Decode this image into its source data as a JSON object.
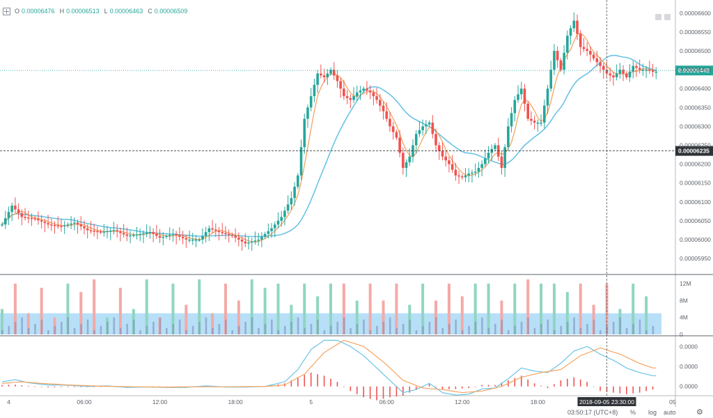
{
  "ohlc": {
    "o_label": "O",
    "o_value": "0.00006476",
    "h_label": "H",
    "h_value": "0.00006513",
    "l_label": "L",
    "l_value": "0.00006463",
    "c_label": "C",
    "c_value": "0.00006509"
  },
  "colors": {
    "up": "#26a69a",
    "down": "#ef5350",
    "up_vol": "#8fd6c0",
    "down_vol": "#f4a9a7",
    "ma_fast": "#f4a460",
    "ma_slow": "#6ac3e6",
    "vol_band": "#5fb7f0",
    "macd_hist": "#ef5350",
    "last_price_bg": "#26a69a",
    "crosshair_bg": "#2f3337"
  },
  "bottom_bar": {
    "time": "03:50:17 (UTC+8)",
    "percent": "%",
    "log": "log",
    "auto": "auto"
  },
  "chart_data": {
    "type": "candlestick",
    "x_tick_labels": [
      "4",
      "06:00",
      "12:00",
      "18:00",
      "5",
      "06:00",
      "12:00",
      "18:00",
      "05"
    ],
    "price_axis": {
      "ylim": [
        5.915e-05,
        6.62e-05
      ],
      "tick_labels": [
        "0.00006600",
        "0.00006550",
        "0.00006500",
        "0.00006450",
        "0.00006400",
        "0.00006350",
        "0.00006300",
        "0.00006250",
        "0.00006200",
        "0.00006150",
        "0.00006100",
        "0.00006050",
        "0.00006000",
        "0.00005950"
      ],
      "last_price_label": "0.00006448",
      "crosshair_price_label": "0.00006235"
    },
    "crosshair_time_label": "2018-09-05 23:30:00",
    "volume_axis": {
      "ylim": [
        0,
        13.5
      ],
      "unit": "M",
      "tick_labels": [
        "12M",
        "8M",
        "4M",
        "0"
      ]
    },
    "macd_axis": {
      "ylim": [
        -0.3,
        1.6
      ],
      "tick_labels": [
        "0.0000",
        "0.0000",
        "0.0000"
      ]
    },
    "price_anchors": [
      [
        0,
        6040
      ],
      [
        3,
        6090
      ],
      [
        6,
        6060
      ],
      [
        10,
        6055
      ],
      [
        14,
        6040
      ],
      [
        18,
        6035
      ],
      [
        22,
        6045
      ],
      [
        26,
        6025
      ],
      [
        30,
        6020
      ],
      [
        34,
        6025
      ],
      [
        38,
        6010
      ],
      [
        42,
        6015
      ],
      [
        45,
        6020
      ],
      [
        48,
        6005
      ],
      [
        52,
        6015
      ],
      [
        56,
        6000
      ],
      [
        60,
        6000
      ],
      [
        63,
        6030
      ],
      [
        66,
        6020
      ],
      [
        70,
        6010
      ],
      [
        74,
        5990
      ],
      [
        78,
        6000
      ],
      [
        82,
        6030
      ],
      [
        85,
        6060
      ],
      [
        88,
        6110
      ],
      [
        90,
        6170
      ],
      [
        92,
        6320
      ],
      [
        94,
        6380
      ],
      [
        96,
        6440
      ],
      [
        98,
        6430
      ],
      [
        100,
        6450
      ],
      [
        102,
        6420
      ],
      [
        104,
        6380
      ],
      [
        106,
        6370
      ],
      [
        108,
        6390
      ],
      [
        110,
        6400
      ],
      [
        112,
        6390
      ],
      [
        114,
        6370
      ],
      [
        116,
        6340
      ],
      [
        118,
        6300
      ],
      [
        120,
        6270
      ],
      [
        122,
        6190
      ],
      [
        124,
        6220
      ],
      [
        126,
        6280
      ],
      [
        128,
        6300
      ],
      [
        130,
        6310
      ],
      [
        132,
        6250
      ],
      [
        134,
        6220
      ],
      [
        136,
        6200
      ],
      [
        138,
        6170
      ],
      [
        140,
        6165
      ],
      [
        142,
        6175
      ],
      [
        144,
        6180
      ],
      [
        146,
        6200
      ],
      [
        148,
        6230
      ],
      [
        150,
        6250
      ],
      [
        152,
        6190
      ],
      [
        154,
        6300
      ],
      [
        156,
        6370
      ],
      [
        158,
        6400
      ],
      [
        160,
        6320
      ],
      [
        162,
        6310
      ],
      [
        164,
        6310
      ],
      [
        166,
        6400
      ],
      [
        168,
        6500
      ],
      [
        170,
        6450
      ],
      [
        172,
        6540
      ],
      [
        174,
        6580
      ],
      [
        176,
        6510
      ],
      [
        178,
        6500
      ],
      [
        180,
        6480
      ],
      [
        182,
        6460
      ],
      [
        184,
        6440
      ],
      [
        186,
        6430
      ],
      [
        188,
        6450
      ],
      [
        190,
        6430
      ],
      [
        192,
        6460
      ],
      [
        194,
        6450
      ],
      [
        196,
        6450
      ],
      [
        198,
        6445
      ]
    ],
    "volume": [
      [
        0,
        6
      ],
      [
        4,
        12
      ],
      [
        8,
        5
      ],
      [
        12,
        11
      ],
      [
        16,
        4
      ],
      [
        20,
        12
      ],
      [
        24,
        10
      ],
      [
        28,
        13
      ],
      [
        32,
        4
      ],
      [
        36,
        11
      ],
      [
        40,
        6
      ],
      [
        44,
        13
      ],
      [
        48,
        4
      ],
      [
        52,
        12
      ],
      [
        56,
        7
      ],
      [
        60,
        13
      ],
      [
        64,
        5
      ],
      [
        68,
        12
      ],
      [
        72,
        8
      ],
      [
        76,
        13
      ],
      [
        80,
        11
      ],
      [
        84,
        12
      ],
      [
        88,
        7
      ],
      [
        92,
        12
      ],
      [
        96,
        9
      ],
      [
        100,
        12
      ],
      [
        104,
        12
      ],
      [
        108,
        8
      ],
      [
        112,
        12
      ],
      [
        116,
        8
      ],
      [
        120,
        12
      ],
      [
        124,
        7
      ],
      [
        128,
        12
      ],
      [
        132,
        8
      ],
      [
        136,
        12
      ],
      [
        140,
        9
      ],
      [
        144,
        12
      ],
      [
        148,
        12
      ],
      [
        152,
        8
      ],
      [
        156,
        12
      ],
      [
        160,
        13
      ],
      [
        164,
        12
      ],
      [
        168,
        12
      ],
      [
        172,
        10
      ],
      [
        176,
        12
      ],
      [
        180,
        7
      ],
      [
        184,
        12
      ],
      [
        188,
        6
      ],
      [
        192,
        12
      ],
      [
        196,
        9
      ]
    ],
    "volume_avg": 5,
    "macd_dif": [
      [
        0,
        0.15
      ],
      [
        4,
        0.22
      ],
      [
        8,
        0.12
      ],
      [
        14,
        0.05
      ],
      [
        20,
        0.04
      ],
      [
        26,
        0.0
      ],
      [
        32,
        0.02
      ],
      [
        38,
        -0.03
      ],
      [
        44,
        -0.02
      ],
      [
        50,
        -0.03
      ],
      [
        56,
        -0.03
      ],
      [
        62,
        0.02
      ],
      [
        68,
        -0.02
      ],
      [
        74,
        -0.02
      ],
      [
        80,
        0.0
      ],
      [
        86,
        0.15
      ],
      [
        90,
        0.55
      ],
      [
        94,
        1.2
      ],
      [
        98,
        1.5
      ],
      [
        102,
        1.5
      ],
      [
        106,
        1.3
      ],
      [
        110,
        1.0
      ],
      [
        114,
        0.6
      ],
      [
        118,
        0.2
      ],
      [
        122,
        -0.2
      ],
      [
        126,
        -0.1
      ],
      [
        130,
        0.1
      ],
      [
        134,
        -0.2
      ],
      [
        138,
        -0.28
      ],
      [
        142,
        -0.25
      ],
      [
        146,
        -0.08
      ],
      [
        150,
        -0.05
      ],
      [
        154,
        0.25
      ],
      [
        158,
        0.6
      ],
      [
        162,
        0.5
      ],
      [
        166,
        0.45
      ],
      [
        170,
        0.75
      ],
      [
        174,
        1.15
      ],
      [
        178,
        1.3
      ],
      [
        182,
        1.05
      ],
      [
        186,
        0.85
      ],
      [
        190,
        0.6
      ],
      [
        194,
        0.45
      ],
      [
        198,
        0.35
      ]
    ],
    "macd_dea": [
      [
        0,
        0.1
      ],
      [
        6,
        0.15
      ],
      [
        12,
        0.1
      ],
      [
        20,
        0.05
      ],
      [
        30,
        0.01
      ],
      [
        40,
        -0.01
      ],
      [
        50,
        -0.02
      ],
      [
        60,
        -0.01
      ],
      [
        70,
        -0.01
      ],
      [
        80,
        0.0
      ],
      [
        86,
        0.05
      ],
      [
        92,
        0.4
      ],
      [
        98,
        1.1
      ],
      [
        104,
        1.5
      ],
      [
        110,
        1.3
      ],
      [
        116,
        0.8
      ],
      [
        122,
        0.2
      ],
      [
        128,
        -0.05
      ],
      [
        134,
        -0.1
      ],
      [
        140,
        -0.2
      ],
      [
        146,
        -0.15
      ],
      [
        152,
        0.0
      ],
      [
        158,
        0.3
      ],
      [
        164,
        0.45
      ],
      [
        170,
        0.55
      ],
      [
        176,
        1.0
      ],
      [
        182,
        1.25
      ],
      [
        188,
        1.05
      ],
      [
        194,
        0.75
      ],
      [
        198,
        0.6
      ]
    ],
    "macd_hist": [
      [
        0,
        0.05
      ],
      [
        4,
        0.06
      ],
      [
        8,
        0.02
      ],
      [
        14,
        -0.03
      ],
      [
        20,
        -0.02
      ],
      [
        26,
        -0.02
      ],
      [
        32,
        0.01
      ],
      [
        38,
        -0.02
      ],
      [
        44,
        -0.01
      ],
      [
        50,
        -0.01
      ],
      [
        56,
        -0.01
      ],
      [
        62,
        0.02
      ],
      [
        68,
        -0.01
      ],
      [
        74,
        -0.01
      ],
      [
        80,
        0.0
      ],
      [
        86,
        0.1
      ],
      [
        90,
        0.3
      ],
      [
        94,
        0.45
      ],
      [
        98,
        0.35
      ],
      [
        102,
        0.15
      ],
      [
        106,
        -0.15
      ],
      [
        110,
        -0.35
      ],
      [
        114,
        -0.45
      ],
      [
        118,
        -0.35
      ],
      [
        122,
        -0.3
      ],
      [
        126,
        -0.1
      ],
      [
        130,
        0.08
      ],
      [
        134,
        -0.1
      ],
      [
        138,
        -0.08
      ],
      [
        142,
        -0.05
      ],
      [
        146,
        0.05
      ],
      [
        150,
        0.05
      ],
      [
        154,
        0.2
      ],
      [
        158,
        0.35
      ],
      [
        162,
        0.1
      ],
      [
        166,
        -0.05
      ],
      [
        170,
        0.2
      ],
      [
        174,
        0.3
      ],
      [
        178,
        0.15
      ],
      [
        182,
        -0.15
      ],
      [
        186,
        -0.2
      ],
      [
        190,
        -0.25
      ],
      [
        194,
        -0.2
      ],
      [
        198,
        -0.1
      ]
    ]
  }
}
